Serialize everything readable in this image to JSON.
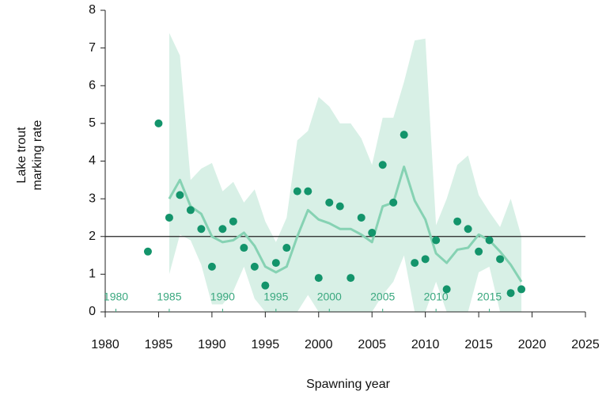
{
  "chart_data": {
    "type": "scatter",
    "ylabel": [
      "Lake trout",
      "marking rate"
    ],
    "xlabel": "Spawning year",
    "xlim": [
      1980,
      2025
    ],
    "xticks": [
      1980,
      1985,
      1990,
      1995,
      2000,
      2005,
      2010,
      2015,
      2020,
      2025
    ],
    "ylim": [
      0,
      8
    ],
    "yticks": [
      0,
      1,
      2,
      3,
      4,
      5,
      6,
      7,
      8
    ],
    "inner_xticks": [
      {
        "value": 1981,
        "label": "1980"
      },
      {
        "value": 1986,
        "label": "1985"
      },
      {
        "value": 1991,
        "label": "1990"
      },
      {
        "value": 1996,
        "label": "1995"
      },
      {
        "value": 2001,
        "label": "2000"
      },
      {
        "value": 2006,
        "label": "2005"
      },
      {
        "value": 2011,
        "label": "2010"
      },
      {
        "value": 2016,
        "label": "2015"
      }
    ],
    "inner_color": "#3aa87f",
    "hline": 2,
    "points": {
      "color": "#13946b",
      "x": [
        1984,
        1985,
        1986,
        1987,
        1988,
        1989,
        1990,
        1991,
        1992,
        1993,
        1994,
        1995,
        1996,
        1997,
        1998,
        1999,
        2000,
        2001,
        2002,
        2003,
        2004,
        2005,
        2006,
        2007,
        2008,
        2009,
        2010,
        2011,
        2012,
        2013,
        2014,
        2015,
        2016,
        2017,
        2018,
        2019
      ],
      "values": [
        1.6,
        5.0,
        2.5,
        3.1,
        2.7,
        2.2,
        1.2,
        2.2,
        2.4,
        1.7,
        1.2,
        0.7,
        1.3,
        1.7,
        3.2,
        3.2,
        0.9,
        2.9,
        2.8,
        0.9,
        2.5,
        2.1,
        3.9,
        2.9,
        4.7,
        1.3,
        1.4,
        1.9,
        0.6,
        2.4,
        2.2,
        1.6,
        1.9,
        1.4,
        0.5,
        0.6
      ]
    },
    "smooth": {
      "color": "#86d2b3",
      "x": [
        1986,
        1987,
        1988,
        1989,
        1990,
        1991,
        1992,
        1993,
        1994,
        1995,
        1996,
        1997,
        1998,
        1999,
        2000,
        2001,
        2002,
        2003,
        2004,
        2005,
        2006,
        2007,
        2008,
        2009,
        2010,
        2011,
        2012,
        2013,
        2014,
        2015,
        2016,
        2017,
        2018,
        2019
      ],
      "values": [
        3.0,
        3.5,
        2.8,
        2.6,
        2.0,
        1.85,
        1.9,
        2.1,
        1.75,
        1.2,
        1.05,
        1.2,
        2.0,
        2.7,
        2.45,
        2.35,
        2.2,
        2.2,
        2.05,
        1.85,
        2.8,
        2.9,
        3.85,
        2.95,
        2.45,
        1.55,
        1.3,
        1.65,
        1.7,
        2.05,
        1.9,
        1.6,
        1.25,
        0.8
      ]
    },
    "band": {
      "color": "#d8f0e6",
      "x": [
        1986,
        1987,
        1988,
        1989,
        1990,
        1991,
        1992,
        1993,
        1994,
        1995,
        1996,
        1997,
        1998,
        1999,
        2000,
        2001,
        2002,
        2003,
        2004,
        2005,
        2006,
        2007,
        2008,
        2009,
        2010,
        2011,
        2012,
        2013,
        2014,
        2015,
        2016,
        2017,
        2018,
        2019
      ],
      "upper": [
        7.4,
        6.8,
        3.5,
        3.8,
        3.95,
        3.2,
        3.45,
        2.9,
        3.25,
        2.4,
        1.85,
        2.5,
        4.55,
        4.8,
        5.7,
        5.45,
        5.0,
        5.0,
        4.6,
        3.9,
        5.15,
        5.15,
        6.1,
        7.2,
        7.25,
        2.3,
        3.0,
        3.9,
        4.15,
        3.1,
        2.65,
        2.25,
        3.0,
        2.0
      ],
      "lower": [
        1.0,
        2.05,
        1.9,
        1.25,
        0.2,
        0.2,
        0.55,
        1.2,
        0.35,
        0,
        0,
        0,
        0,
        0.45,
        0,
        0,
        0,
        0,
        0,
        0,
        0.45,
        0.8,
        1.5,
        0,
        0,
        0.8,
        0,
        0,
        0,
        1.05,
        1.2,
        0,
        0,
        0
      ]
    }
  }
}
